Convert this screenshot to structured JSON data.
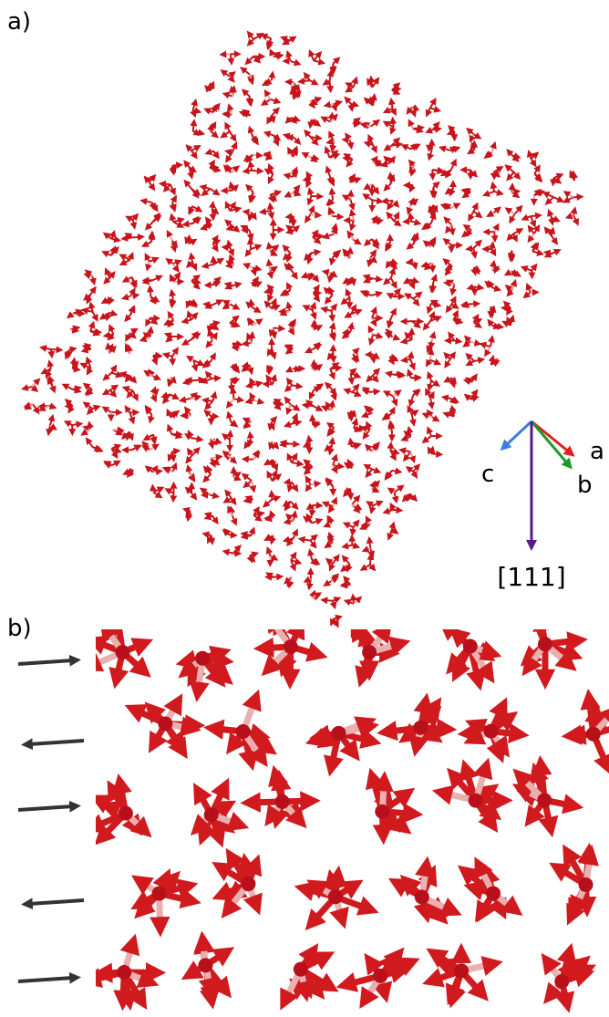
{
  "panels": [
    {
      "label": "a)",
      "axes": {
        "a": "a",
        "b": "b",
        "c": "c",
        "direction": "[111]"
      }
    },
    {
      "label": "b)"
    }
  ]
}
